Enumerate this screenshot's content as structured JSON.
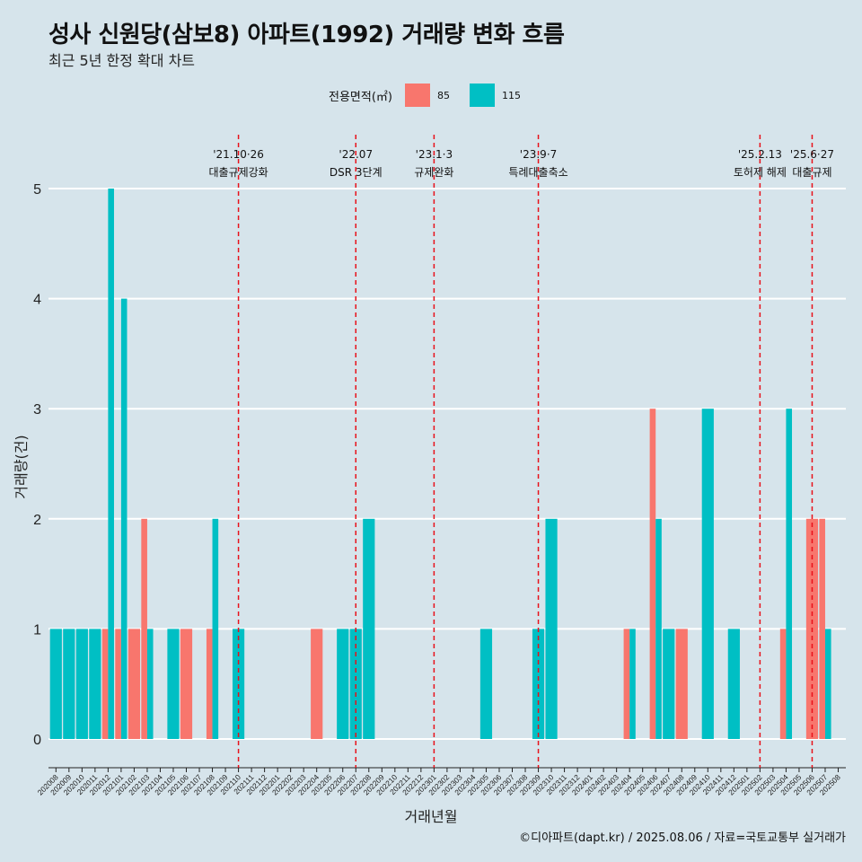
{
  "title": "성사 신원당(삼보8) 아파트(1992) 거래량 변화 흐름",
  "subtitle": "최근 5년 한정 확대 차트",
  "legend": {
    "title": "전용면적(㎡)",
    "items": [
      {
        "label": "85",
        "color": "#f8766d"
      },
      {
        "label": "115",
        "color": "#00bfc4"
      }
    ]
  },
  "caption": "©디아파트(dapt.kr) / 2025.08.06 / 자료=국토교통부 실거래가",
  "chart_data": {
    "type": "bar",
    "xlabel": "거래년월",
    "ylabel": "거래량(건)",
    "ylim": [
      0,
      5
    ],
    "yticks": [
      0,
      1,
      2,
      3,
      4,
      5
    ],
    "categories": [
      "202008",
      "202009",
      "202010",
      "202011",
      "202012",
      "202101",
      "202102",
      "202103",
      "202104",
      "202105",
      "202106",
      "202107",
      "202108",
      "202109",
      "202110",
      "202111",
      "202112",
      "202201",
      "202202",
      "202203",
      "202204",
      "202205",
      "202206",
      "202207",
      "202208",
      "202209",
      "202210",
      "202211",
      "202212",
      "202301",
      "202302",
      "202303",
      "202304",
      "202305",
      "202306",
      "202307",
      "202308",
      "202309",
      "202310",
      "202311",
      "202312",
      "202401",
      "202402",
      "202403",
      "202404",
      "202405",
      "202406",
      "202407",
      "202408",
      "202409",
      "202410",
      "202411",
      "202412",
      "202501",
      "202502",
      "202503",
      "202504",
      "202505",
      "202506",
      "202507",
      "202508"
    ],
    "series": [
      {
        "name": "85",
        "color": "#f8766d",
        "values": [
          0,
          0,
          0,
          0,
          1,
          1,
          1,
          2,
          0,
          0,
          1,
          0,
          1,
          0,
          0,
          0,
          0,
          0,
          0,
          0,
          1,
          0,
          0,
          0,
          0,
          0,
          0,
          0,
          0,
          0,
          0,
          0,
          0,
          0,
          0,
          0,
          0,
          0,
          0,
          0,
          0,
          0,
          0,
          0,
          1,
          0,
          3,
          0,
          1,
          0,
          0,
          0,
          0,
          0,
          0,
          0,
          1,
          0,
          2,
          2,
          0
        ]
      },
      {
        "name": "115",
        "color": "#00bfc4",
        "values": [
          1,
          1,
          1,
          1,
          5,
          4,
          0,
          1,
          0,
          1,
          0,
          0,
          2,
          0,
          1,
          0,
          0,
          0,
          0,
          0,
          0,
          0,
          1,
          1,
          2,
          0,
          0,
          0,
          0,
          0,
          0,
          0,
          0,
          1,
          0,
          0,
          0,
          1,
          2,
          0,
          0,
          0,
          0,
          0,
          1,
          0,
          2,
          1,
          0,
          0,
          3,
          0,
          1,
          0,
          0,
          0,
          3,
          0,
          0,
          1,
          0
        ]
      }
    ],
    "annotations": [
      {
        "category": "202110",
        "line1": "'21.10·26",
        "line2": "대출규제강화"
      },
      {
        "category": "202207",
        "line1": "'22.07",
        "line2": "DSR 3단계"
      },
      {
        "category": "202301",
        "line1": "'23.1·3",
        "line2": "규제완화"
      },
      {
        "category": "202309",
        "line1": "'23.9·7",
        "line2": "특례대출축소"
      },
      {
        "category": "202502",
        "line1": "'25.2.13",
        "line2": "토허제 해제"
      },
      {
        "category": "202506",
        "line1": "'25.6·27",
        "line2": "대출규제"
      }
    ]
  }
}
